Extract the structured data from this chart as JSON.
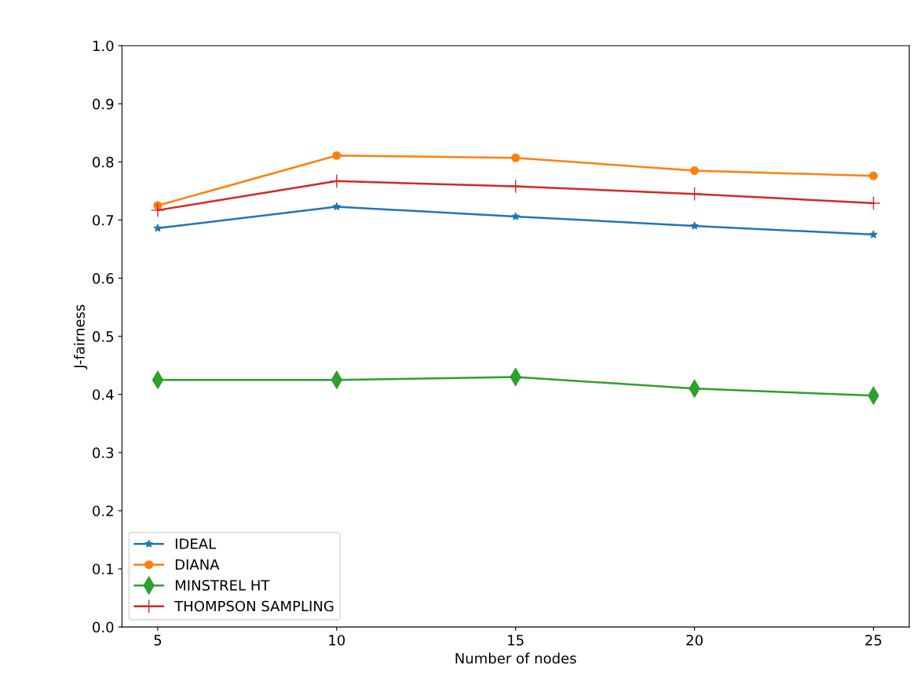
{
  "chart_data": {
    "type": "line",
    "xlabel": "Number of nodes",
    "ylabel": "J-fairness",
    "x": [
      5,
      10,
      15,
      20,
      25
    ],
    "series": [
      {
        "name": "IDEAL",
        "color": "#1f77b4",
        "marker": "star",
        "values": [
          0.686,
          0.723,
          0.706,
          0.69,
          0.675
        ]
      },
      {
        "name": "DIANA",
        "color": "#ff7f0e",
        "marker": "circle",
        "values": [
          0.725,
          0.811,
          0.807,
          0.785,
          0.776
        ]
      },
      {
        "name": "MINSTREL HT",
        "color": "#2ca02c",
        "marker": "diamond",
        "values": [
          0.425,
          0.425,
          0.43,
          0.41,
          0.398
        ]
      },
      {
        "name": "THOMPSON SAMPLING",
        "color": "#d62728",
        "marker": "cross",
        "values": [
          0.717,
          0.767,
          0.758,
          0.745,
          0.729
        ]
      }
    ],
    "xlim": [
      4,
      26
    ],
    "xticks": [
      5,
      10,
      15,
      20,
      25
    ],
    "ylim": [
      0,
      1
    ],
    "yticks": [
      {
        "value": 0,
        "label": "0.0"
      },
      0.1,
      0.2,
      0.3,
      0.4,
      0.5,
      0.6,
      0.7,
      0.8,
      0.9,
      {
        "value": 1,
        "label": "1.0"
      }
    ],
    "grid": false,
    "legend": "bottom left",
    "line_style": "solid"
  }
}
